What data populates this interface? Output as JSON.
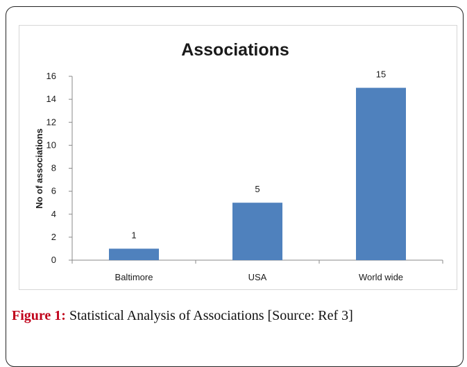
{
  "caption": {
    "label": "Figure 1:",
    "text": "Statistical Analysis of Associations [Source: Ref 3]"
  },
  "colors": {
    "bar": "#4f81bd",
    "axis": "#888888",
    "label": "#1a1a1a",
    "caption_label": "#c0001a"
  },
  "chart_data": {
    "type": "bar",
    "title": "Associations",
    "xlabel": "",
    "ylabel": "No of associations",
    "categories": [
      "Baltimore",
      "USA",
      "World wide"
    ],
    "values": [
      1,
      5,
      15
    ],
    "data_labels": [
      "1",
      "5",
      "15"
    ],
    "ylim": [
      0,
      16
    ],
    "yticks": [
      0,
      2,
      4,
      6,
      8,
      10,
      12,
      14,
      16
    ],
    "ytick_labels": [
      "0",
      "2",
      "4",
      "6",
      "8",
      "10",
      "12",
      "14",
      "16"
    ],
    "grid": false,
    "legend": "none"
  }
}
